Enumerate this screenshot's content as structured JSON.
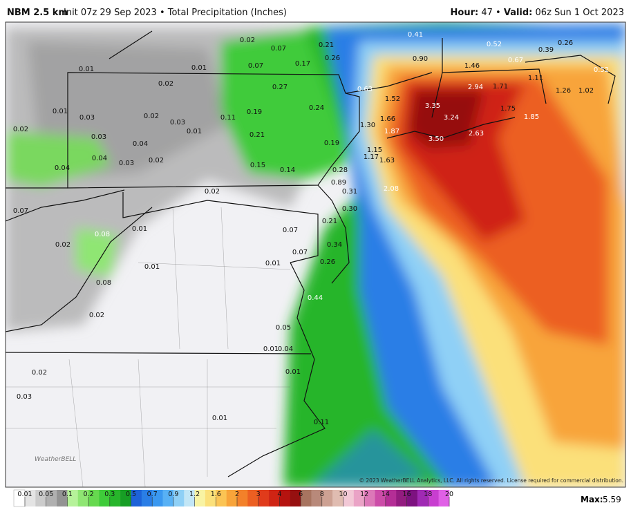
{
  "header": {
    "model": "NBM 2.5 km",
    "subtitle": "Init 07z 29 Sep 2023 • Total Precipitation (Inches)",
    "hour_label": "Hour:",
    "hour_value": "47",
    "separator": "•",
    "valid_label": "Valid:",
    "valid_value": "06z Sun 1 Oct 2023"
  },
  "map_labels": [
    "0.02",
    "0.07",
    "0.01",
    "0.01",
    "0.07",
    "0.17",
    "0.21",
    "0.26",
    "0.41",
    "0.90",
    "0.52",
    "0.39",
    "0.26",
    "0.67",
    "1.46",
    "0.52",
    "0.02",
    "0.27",
    "0.63",
    "1.52",
    "2.94",
    "1.71",
    "1.11",
    "1.26",
    "1.02",
    "3.35",
    "3.24",
    "1.75",
    "1.85",
    "0.01",
    "0.03",
    "0.02",
    "0.03",
    "0.11",
    "0.19",
    "0.24",
    "0.01",
    "0.02",
    "0.03",
    "0.04",
    "1.66",
    "1.30",
    "1.87",
    "2.63",
    "3.50",
    "0.21",
    "0.19",
    "0.04",
    "0.03",
    "0.02",
    "0.04",
    "1.15",
    "1.17",
    "1.63",
    "0.15",
    "0.14",
    "0.28",
    "0.89",
    "2.08",
    "0.02",
    "0.31",
    "0.07",
    "0.30",
    "0.21",
    "0.01",
    "0.07",
    "0.08",
    "0.02",
    "0.34",
    "0.07",
    "0.01",
    "0.01",
    "0.26",
    "0.08",
    "0.44",
    "0.02",
    "0.05",
    "0.01",
    "0.04",
    "0.02",
    "0.01",
    "0.03",
    "0.01",
    "0.11"
  ],
  "colorbar": {
    "ticks": [
      0.01,
      0.05,
      0.1,
      0.2,
      0.3,
      0.5,
      0.7,
      0.9,
      1.2,
      1.6,
      2,
      3,
      4,
      6,
      8,
      10,
      12,
      14,
      16,
      18,
      20
    ],
    "colors": [
      "#e4e4e4",
      "#cccccc",
      "#b0b0b0",
      "#939393",
      "#b6f29a",
      "#8fe673",
      "#66d94f",
      "#3fcb3a",
      "#27b52b",
      "#179e25",
      "#1d62d8",
      "#2a7ee6",
      "#3a98f0",
      "#58b1f5",
      "#8fd0f6",
      "#c2e6f6",
      "#f8f3a3",
      "#fbe07a",
      "#fbc454",
      "#f8a43a",
      "#f3812a",
      "#ec5f22",
      "#e03b1b",
      "#cf2414",
      "#b5130f",
      "#961010",
      "#a77460",
      "#b8897a",
      "#cda193",
      "#e0bcb1",
      "#f2c8d6",
      "#eaa3c6",
      "#dc78b8",
      "#cc4ca8",
      "#b42e96",
      "#931c80",
      "#7d1280",
      "#a02ab4",
      "#c83ed0",
      "#e060e6"
    ]
  },
  "max_label": "Max:",
  "max_value": 5.59,
  "copyright": "© 2023 WeatherBELL Analytics, LLC. All rights reserved. License required for commercial distribution.",
  "logo": "WeatherBELL"
}
